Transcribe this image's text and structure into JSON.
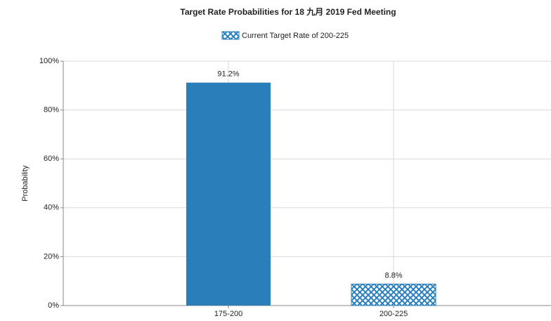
{
  "chart_data": {
    "type": "bar",
    "title": "Target Rate Probabilities for 18 九月 2019  Fed Meeting",
    "legend": "Current Target Rate of 200-225",
    "y_label": "Probability",
    "categories": [
      "175-200",
      "200-225"
    ],
    "values": [
      91.2,
      8.8
    ],
    "value_labels": [
      "91.2%",
      "8.8%"
    ],
    "hatched": [
      false,
      true
    ],
    "color": "#2a7fba",
    "ylim": [
      0,
      100
    ],
    "yticks": [
      {
        "value": 0,
        "label": "0%"
      },
      {
        "value": 20,
        "label": "20%"
      },
      {
        "value": 40,
        "label": "40%"
      },
      {
        "value": 60,
        "label": "60%"
      },
      {
        "value": 80,
        "label": "80%"
      },
      {
        "value": 100,
        "label": "100%"
      }
    ],
    "grid": true
  }
}
